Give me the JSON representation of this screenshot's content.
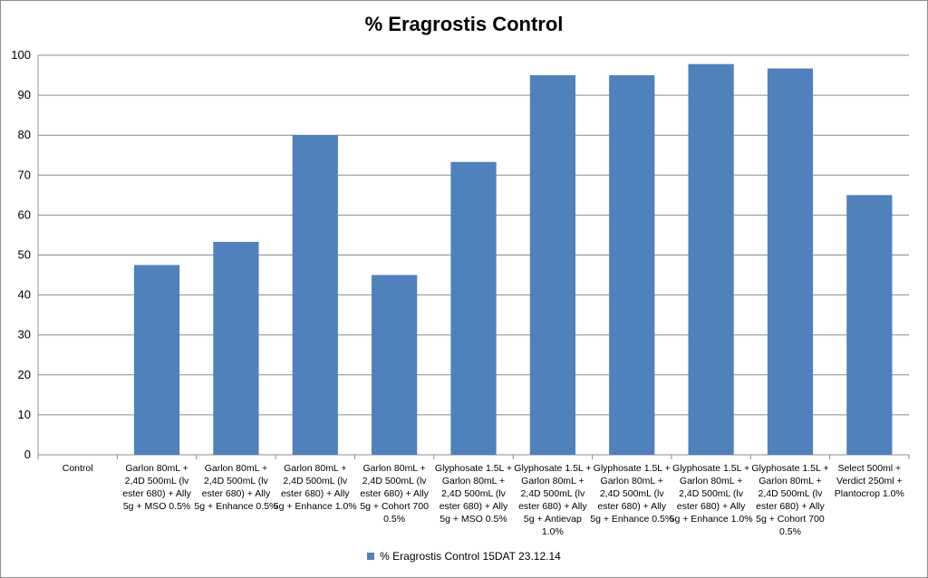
{
  "chart_data": {
    "type": "bar",
    "title": "% Eragrostis Control",
    "xlabel": "",
    "ylabel": "",
    "ylim": [
      0,
      100
    ],
    "yticks": [
      0,
      10,
      20,
      30,
      40,
      50,
      60,
      70,
      80,
      90,
      100
    ],
    "grid": true,
    "legend_position": "bottom",
    "categories": [
      [
        "Control"
      ],
      [
        "Garlon 80mL +",
        "2,4D 500mL (lv",
        "ester 680) + Ally",
        "5g + MSO 0.5%"
      ],
      [
        "Garlon 80mL +",
        "2,4D 500mL (lv",
        "ester 680) + Ally",
        "5g + Enhance 0.5%"
      ],
      [
        "Garlon 80mL +",
        "2,4D 500mL (lv",
        "ester 680) + Ally",
        "5g + Enhance 1.0%"
      ],
      [
        "Garlon 80mL +",
        "2,4D 500mL (lv",
        "ester 680) + Ally",
        "5g + Cohort 700",
        "0.5%"
      ],
      [
        "Glyphosate 1.5L +",
        "Garlon 80mL +",
        "2,4D 500mL (lv",
        "ester 680) + Ally",
        "5g + MSO 0.5%"
      ],
      [
        "Glyphosate 1.5L +",
        "Garlon 80mL +",
        "2,4D 500mL (lv",
        "ester 680) + Ally",
        "5g + Antievap",
        "1.0%"
      ],
      [
        "Glyphosate 1.5L +",
        "Garlon 80mL +",
        "2,4D 500mL (lv",
        "ester 680) + Ally",
        "5g + Enhance 0.5%"
      ],
      [
        "Glyphosate 1.5L +",
        "Garlon 80mL +",
        "2,4D 500mL (lv",
        "ester 680) + Ally",
        "5g + Enhance 1.0%"
      ],
      [
        "Glyphosate 1.5L +",
        "Garlon 80mL +",
        "2,4D 500mL (lv",
        "ester 680) + Ally",
        "5g + Cohort 700",
        "0.5%"
      ],
      [
        "Select 500ml +",
        "Verdict 250ml +",
        "Plantocrop 1.0%"
      ]
    ],
    "series": [
      {
        "name": "% Eragrostis Control 15DAT 23.12.14",
        "color": "#4f81bd",
        "values": [
          0,
          47.5,
          53.3,
          80,
          45,
          73.3,
          95,
          95,
          97.8,
          96.7,
          65
        ]
      }
    ]
  }
}
